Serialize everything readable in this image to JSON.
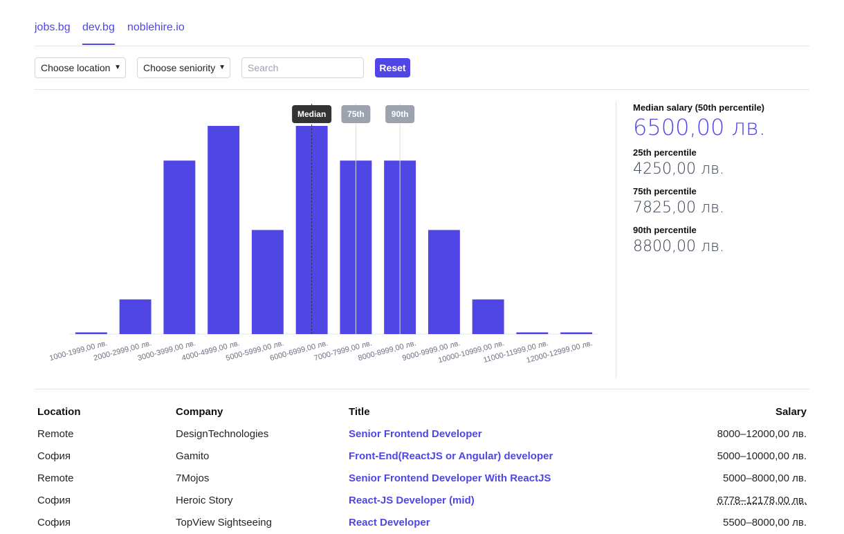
{
  "tabs": [
    {
      "label": "jobs.bg",
      "active": false
    },
    {
      "label": "dev.bg",
      "active": true
    },
    {
      "label": "noblehire.io",
      "active": false
    }
  ],
  "filters": {
    "location_select": "Choose location",
    "seniority_select": "Choose seniority",
    "search_placeholder": "Search",
    "reset_label": "Reset"
  },
  "stats": {
    "median_label": "Median salary (50th percentile)",
    "median_value": "6500,00 лв.",
    "p25_label": "25th percentile",
    "p25_value": "4250,00 лв.",
    "p75_label": "75th percentile",
    "p75_value": "7825,00 лв.",
    "p90_label": "90th percentile",
    "p90_value": "8800,00 лв."
  },
  "chart_data": {
    "type": "bar",
    "categories": [
      "1000-1999,00 лв.",
      "2000-2999,00 лв.",
      "3000-3999,00 лв.",
      "4000-4999,00 лв.",
      "5000-5999,00 лв.",
      "6000-6999,00 лв.",
      "7000-7999,00 лв.",
      "8000-8999,00 лв.",
      "9000-9999,00 лв.",
      "10000-10999,00 лв.",
      "11000-11999,00 лв.",
      "12000-12999,00 лв."
    ],
    "values": [
      0.05,
      1,
      5,
      6,
      3,
      6,
      5,
      5,
      3,
      1,
      0.05,
      0.05
    ],
    "ylim": [
      0,
      6
    ],
    "bar_color": "#4f46e5",
    "markers": [
      {
        "label": "Median",
        "category_index": 5.5,
        "style": "dashed",
        "color": "#333333"
      },
      {
        "label": "75th",
        "category_index": 6.5,
        "style": "solid",
        "color": "#9ca3af"
      },
      {
        "label": "90th",
        "category_index": 7.5,
        "style": "solid",
        "color": "#9ca3af"
      }
    ]
  },
  "table": {
    "headers": {
      "location": "Location",
      "company": "Company",
      "title": "Title",
      "salary": "Salary"
    },
    "rows": [
      {
        "location": "Remote",
        "company": "DesignTechnologies",
        "title": "Senior Frontend Developer",
        "salary": "8000–12000,00 лв."
      },
      {
        "location": "София",
        "company": "Gamito",
        "title": "Front-End(ReactJS or Angular) developer",
        "salary": "5000–10000,00 лв."
      },
      {
        "location": "Remote",
        "company": "7Mojos",
        "title": "Senior Frontend Developer With ReactJS",
        "salary": "5000–8000,00 лв."
      },
      {
        "location": "София",
        "company": "Heroic Story",
        "title": "React-JS Developer (mid)",
        "salary": "6778–12178,00 лв."
      },
      {
        "location": "София",
        "company": "TopView Sightseeing",
        "title": "React Developer",
        "salary": "5500–8000,00 лв."
      }
    ]
  }
}
